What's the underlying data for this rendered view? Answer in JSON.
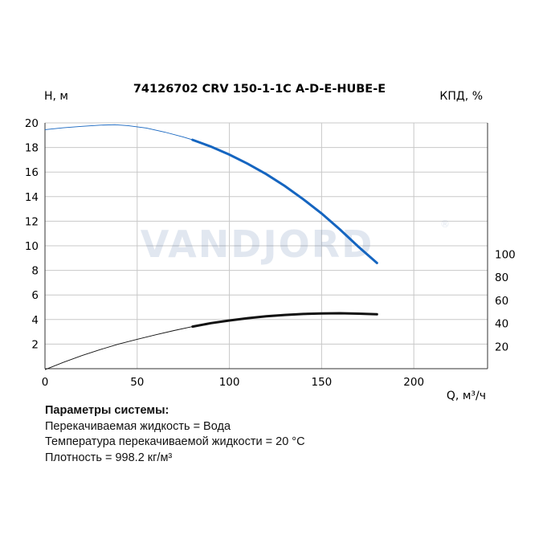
{
  "chart_data": {
    "type": "line",
    "title": "74126702 CRV 150-1-1C A-D-E-HUBE-E",
    "xlabel": "Q, м³/ч",
    "ylabel_left": "H, м",
    "ylabel_right": "КПД, %",
    "xlim": [
      0,
      240
    ],
    "ylim_left": [
      0,
      20
    ],
    "ylim_right_ticks": [
      20,
      40,
      60,
      80,
      100
    ],
    "x_ticks": [
      0,
      50,
      100,
      150,
      200
    ],
    "y_left_ticks": [
      2,
      4,
      6,
      8,
      10,
      12,
      14,
      16,
      18,
      20
    ],
    "grid": true,
    "watermark": "VANDJORD",
    "series": [
      {
        "axis": "left",
        "color": "#1565c0",
        "extrapolated_points": [
          [
            0,
            19.45
          ],
          [
            10,
            19.6
          ],
          [
            20,
            19.72
          ],
          [
            30,
            19.82
          ],
          [
            38,
            19.85
          ],
          [
            45,
            19.78
          ],
          [
            55,
            19.58
          ],
          [
            65,
            19.25
          ],
          [
            75,
            18.85
          ],
          [
            80,
            18.62
          ]
        ],
        "points": [
          [
            80,
            18.62
          ],
          [
            90,
            18.07
          ],
          [
            100,
            17.42
          ],
          [
            110,
            16.67
          ],
          [
            120,
            15.83
          ],
          [
            130,
            14.87
          ],
          [
            140,
            13.8
          ],
          [
            150,
            12.63
          ],
          [
            160,
            11.32
          ],
          [
            170,
            9.92
          ],
          [
            180,
            8.6
          ]
        ]
      },
      {
        "axis": "right",
        "color": "#111111",
        "extrapolated_points": [
          [
            0,
            0
          ],
          [
            10,
            6.3
          ],
          [
            20,
            12.2
          ],
          [
            30,
            17.4
          ],
          [
            40,
            22.2
          ],
          [
            50,
            26.3
          ],
          [
            60,
            30.2
          ],
          [
            70,
            33.9
          ],
          [
            80,
            37.3
          ]
        ],
        "points": [
          [
            80,
            37.3
          ],
          [
            90,
            40.3
          ],
          [
            100,
            42.6
          ],
          [
            110,
            44.6
          ],
          [
            120,
            46.2
          ],
          [
            130,
            47.4
          ],
          [
            140,
            48.2
          ],
          [
            150,
            48.7
          ],
          [
            160,
            48.8
          ],
          [
            170,
            48.5
          ],
          [
            180,
            47.9
          ]
        ]
      }
    ]
  },
  "params": {
    "heading": "Параметры системы:",
    "lines": [
      "Перекачиваемая жидкость = Вода",
      "Температура перекачиваемой жидкости = 20 °C",
      "Плотность = 998.2 кг/м³"
    ]
  }
}
